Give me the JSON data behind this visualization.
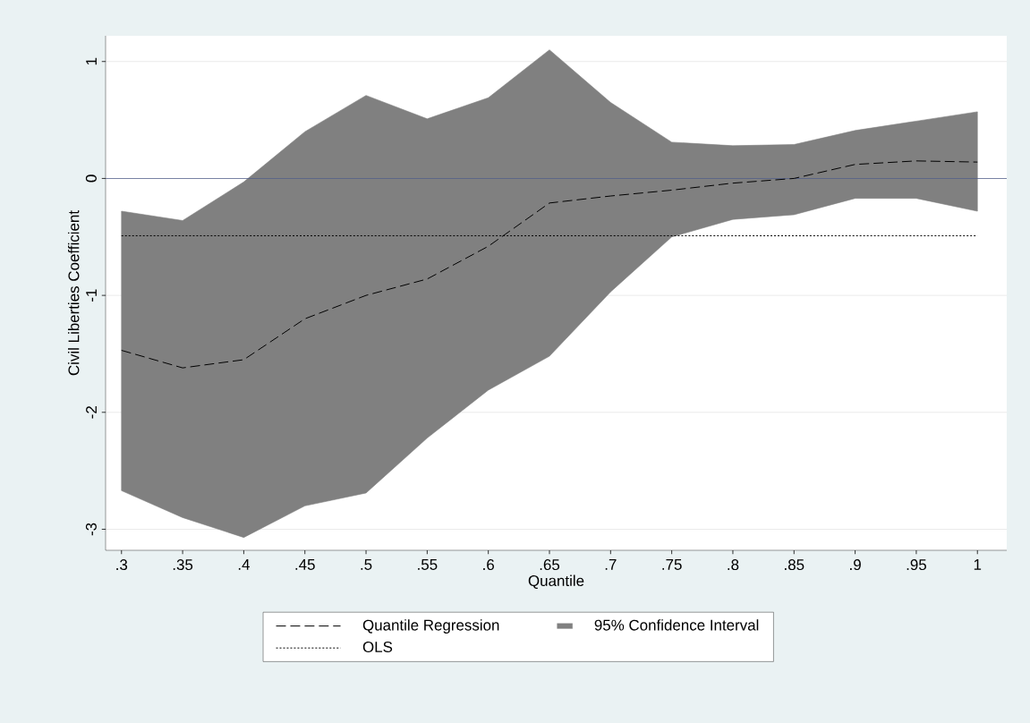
{
  "chart_data": {
    "type": "line",
    "xlabel": "Quantile",
    "ylabel": "Civil Liberties Coefficient",
    "x": [
      0.3,
      0.35,
      0.4,
      0.45,
      0.5,
      0.55,
      0.6,
      0.65,
      0.7,
      0.75,
      0.8,
      0.85,
      0.9,
      0.95,
      1
    ],
    "series": [
      {
        "name": "Quantile Regression",
        "type": "line",
        "line_style": "dashed",
        "color": "#000000",
        "values": [
          -1.47,
          -1.62,
          -1.55,
          -1.2,
          -1.0,
          -0.86,
          -0.58,
          -0.21,
          -0.15,
          -0.1,
          -0.04,
          0.0,
          0.12,
          0.15,
          0.14
        ],
        "lower": [
          -2.67,
          -2.9,
          -3.07,
          -2.8,
          -2.69,
          -2.22,
          -1.81,
          -1.52,
          -0.97,
          -0.5,
          -0.35,
          -0.31,
          -0.17,
          -0.17,
          -0.28
        ],
        "upper": [
          -0.28,
          -0.36,
          -0.03,
          0.4,
          0.71,
          0.51,
          0.69,
          1.1,
          0.65,
          0.31,
          0.28,
          0.29,
          0.41,
          0.49,
          0.57
        ]
      },
      {
        "name": "95% Confidence Interval",
        "type": "area",
        "color": "#808080",
        "values": [
          null,
          null,
          null,
          null,
          null,
          null,
          null,
          null,
          null,
          null,
          null,
          null,
          null,
          null,
          null
        ]
      },
      {
        "name": "OLS",
        "type": "line",
        "line_style": "dotted",
        "color": "#000000",
        "values": [
          -0.49,
          -0.49,
          -0.49,
          -0.49,
          -0.49,
          -0.49,
          -0.49,
          -0.49,
          -0.49,
          -0.49,
          -0.49,
          -0.49,
          -0.49,
          -0.49,
          -0.49
        ]
      }
    ],
    "ref_lines": [
      {
        "axis": "y",
        "value": 0,
        "color": "#4f5d8a"
      }
    ],
    "xlim": [
      0.287,
      1.024
    ],
    "ylim": [
      -3.18,
      1.22
    ],
    "xticks": [
      {
        "value": 0.3,
        "label": ".3"
      },
      {
        "value": 0.35,
        "label": ".35"
      },
      {
        "value": 0.4,
        "label": ".4"
      },
      {
        "value": 0.45,
        "label": ".45"
      },
      {
        "value": 0.5,
        "label": ".5"
      },
      {
        "value": 0.55,
        "label": ".55"
      },
      {
        "value": 0.6,
        "label": ".6"
      },
      {
        "value": 0.65,
        "label": ".65"
      },
      {
        "value": 0.7,
        "label": ".7"
      },
      {
        "value": 0.75,
        "label": ".75"
      },
      {
        "value": 0.8,
        "label": ".8"
      },
      {
        "value": 0.85,
        "label": ".85"
      },
      {
        "value": 0.9,
        "label": ".9"
      },
      {
        "value": 0.95,
        "label": ".95"
      },
      {
        "value": 1,
        "label": "1"
      }
    ],
    "yticks": [
      -3,
      -2,
      -1,
      0,
      1
    ],
    "grid": "y",
    "legend": "bottom",
    "marker": "none"
  }
}
